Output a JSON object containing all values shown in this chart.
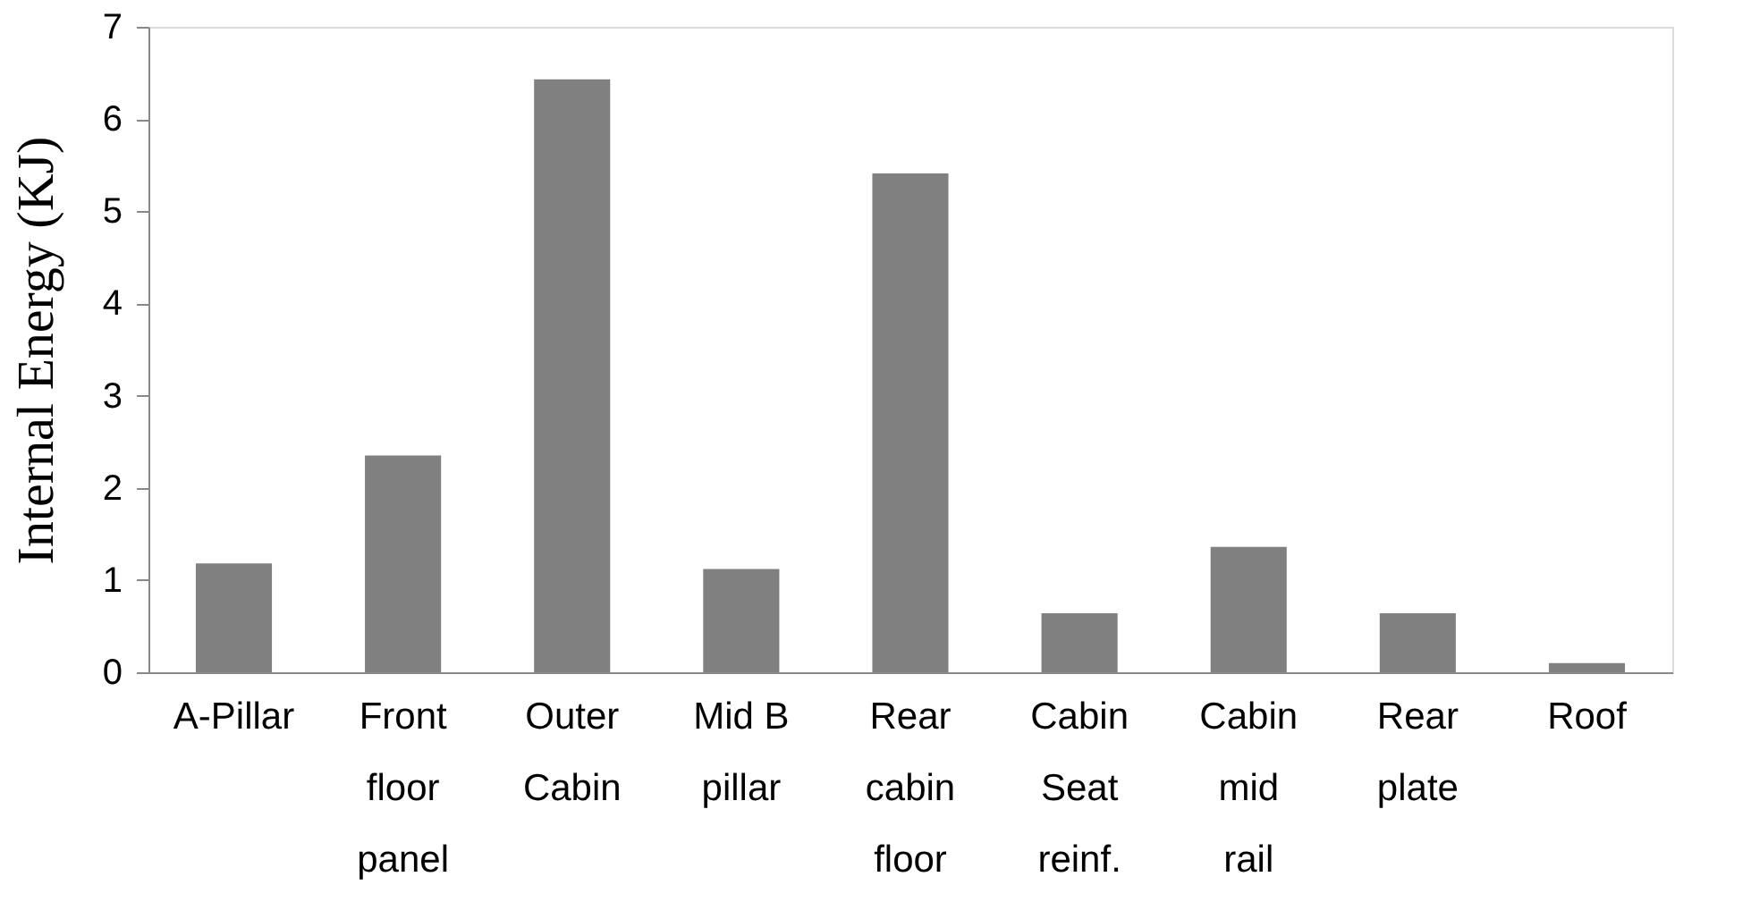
{
  "chart_data": {
    "type": "bar",
    "ylabel": "Internal Energy (KJ)",
    "categories": [
      "A-Pillar",
      "Front\nfloor\npanel",
      "Outer\nCabin",
      "Mid B\npillar",
      "Rear\ncabin\nfloor",
      "Cabin\nSeat\nreinf.",
      "Cabin\nmid\nrail",
      "Rear\nplate",
      "Roof"
    ],
    "values": [
      1.18,
      2.35,
      6.43,
      1.12,
      5.41,
      0.64,
      1.36,
      0.64,
      0.1
    ],
    "color": "#808080",
    "ylim": [
      0,
      7
    ],
    "yticks": [
      0,
      1,
      2,
      3,
      4,
      5,
      6,
      7
    ],
    "grid": false
  }
}
